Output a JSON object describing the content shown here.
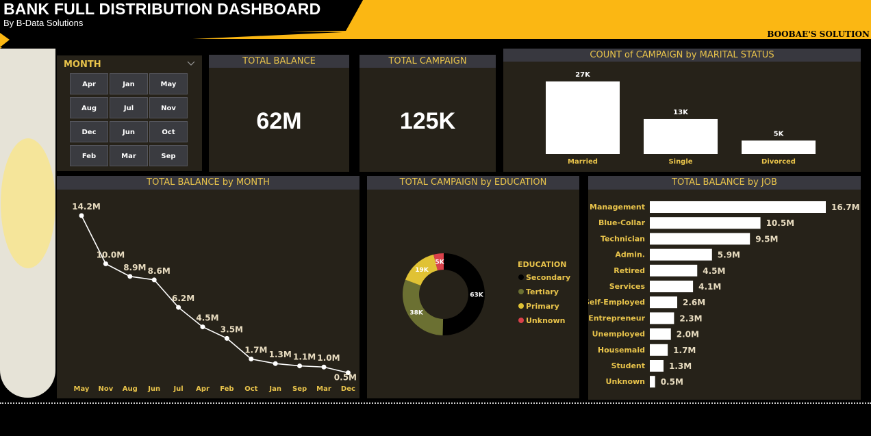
{
  "header": {
    "title": "BANK FULL DISTRIBUTION DASHBOARD",
    "subtitle": "By B-Data Solutions",
    "brand": "BOOBAE'S SOLUTION"
  },
  "colors": {
    "accent": "#fbb713",
    "panel": "#262219",
    "panel_header": "#38383f",
    "label_gold": "#e9c44b"
  },
  "slicer": {
    "title": "MONTH",
    "dropdown_icon": "chevron-down-icon",
    "months": [
      "Apr",
      "Jan",
      "May",
      "Aug",
      "Jul",
      "Nov",
      "Dec",
      "Jun",
      "Oct",
      "Feb",
      "Mar",
      "Sep"
    ]
  },
  "kpis": {
    "total_balance": {
      "label": "TOTAL BALANCE",
      "value": "62M"
    },
    "total_campaign": {
      "label": "TOTAL CAMPAIGN",
      "value": "125K"
    }
  },
  "chart_data": [
    {
      "id": "marital",
      "type": "bar",
      "title": "COUNT of CAMPAIGN by MARITAL STATUS",
      "categories": [
        "Married",
        "Single",
        "Divorced"
      ],
      "values": [
        27,
        13,
        5
      ],
      "labels": [
        "27K",
        "13K",
        "5K"
      ],
      "ylim": [
        0,
        27
      ]
    },
    {
      "id": "balance_month",
      "type": "line",
      "title": "TOTAL BALANCE by MONTH",
      "categories": [
        "May",
        "Nov",
        "Aug",
        "Jun",
        "Jul",
        "Apr",
        "Feb",
        "Oct",
        "Jan",
        "Sep",
        "Mar",
        "Dec"
      ],
      "values": [
        14.2,
        10.0,
        8.9,
        8.6,
        6.2,
        4.5,
        3.5,
        1.7,
        1.3,
        1.1,
        1.0,
        0.5
      ],
      "labels": [
        "14.2M",
        "10.0M",
        "8.9M",
        "8.6M",
        "6.2M",
        "4.5M",
        "3.5M",
        "1.7M",
        "1.3M",
        "1.1M",
        "1.0M",
        "0.5M"
      ],
      "ylim": [
        0,
        14.2
      ]
    },
    {
      "id": "education",
      "type": "pie",
      "title": "TOTAL CAMPAIGN by EDUCATION",
      "legend_title": "EDUCATION",
      "categories": [
        "Secondary",
        "Tertiary",
        "Primary",
        "Unknown"
      ],
      "values": [
        63,
        38,
        19,
        5
      ],
      "labels": [
        "63K",
        "38K",
        "19K",
        "5K"
      ],
      "colors": [
        "#000000",
        "#6b7032",
        "#e0c234",
        "#d9414a"
      ],
      "legend": "right"
    },
    {
      "id": "balance_job",
      "type": "bar",
      "orientation": "horizontal",
      "title": "TOTAL BALANCE by JOB",
      "categories": [
        "Management",
        "Blue-Collar",
        "Technician",
        "Admin.",
        "Retired",
        "Services",
        "Self-Employed",
        "Entrepreneur",
        "Unemployed",
        "Housemaid",
        "Student",
        "Unknown"
      ],
      "values": [
        16.7,
        10.5,
        9.5,
        5.9,
        4.5,
        4.1,
        2.6,
        2.3,
        2.0,
        1.7,
        1.3,
        0.5
      ],
      "labels": [
        "16.7M",
        "10.5M",
        "9.5M",
        "5.9M",
        "4.5M",
        "4.1M",
        "2.6M",
        "2.3M",
        "2.0M",
        "1.7M",
        "1.3M",
        "0.5M"
      ],
      "ylim": [
        0,
        16.7
      ]
    }
  ]
}
